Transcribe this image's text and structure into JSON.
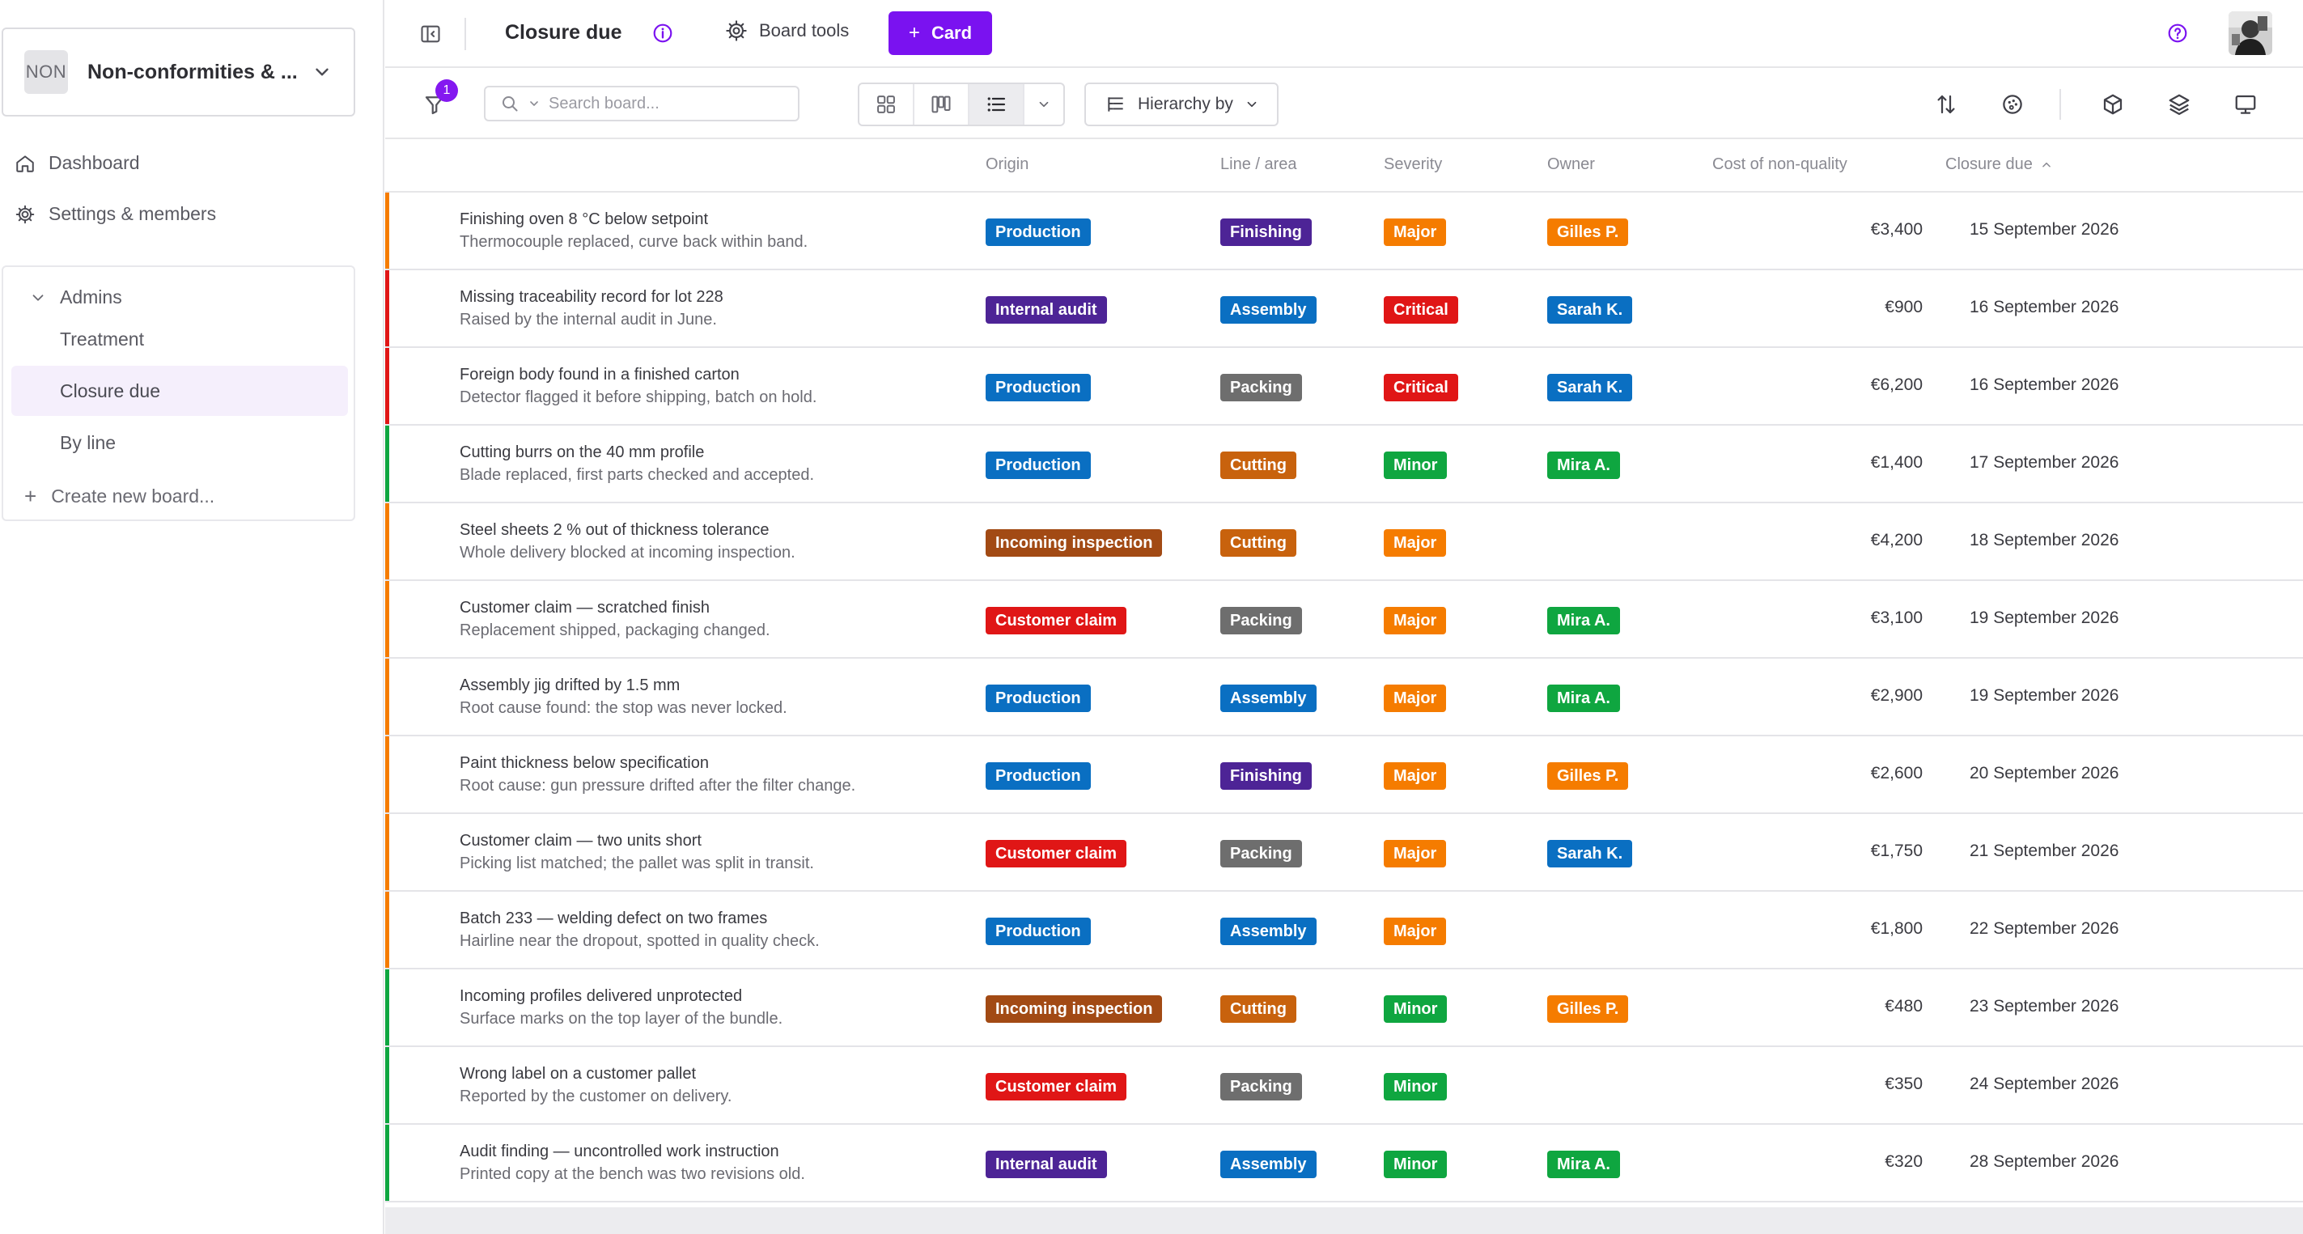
{
  "workspace": {
    "avatar_text": "NON",
    "name": "Non-conformities & ..."
  },
  "nav": {
    "dashboard": "Dashboard",
    "settings": "Settings & members"
  },
  "boards": {
    "group": "Admins",
    "items": [
      "Treatment",
      "Closure due",
      "By line"
    ],
    "active": "Closure due",
    "create": "Create new board..."
  },
  "topbar": {
    "title": "Closure due",
    "board_tools": "Board tools",
    "card_button": "Card"
  },
  "toolbar": {
    "filter_count": "1",
    "search_placeholder": "Search board...",
    "hierarchy": "Hierarchy by"
  },
  "columns": {
    "origin": "Origin",
    "line": "Line / area",
    "severity": "Severity",
    "owner": "Owner",
    "cost": "Cost of non-quality",
    "due": "Closure due"
  },
  "colors": {
    "accent": "#7a12f0",
    "origin": {
      "Production": "#0a6fc2",
      "Internal audit": "#4d2496",
      "Incoming inspection": "#a24a14",
      "Customer claim": "#e01616"
    },
    "line": {
      "Finishing": "#4d2496",
      "Assembly": "#0a6fc2",
      "Packing": "#6e6e6e",
      "Cutting": "#c8620d"
    },
    "severity": {
      "Major": "#f57c00",
      "Critical": "#e01616",
      "Minor": "#0fa640"
    },
    "owner": {
      "Gilles P.": "#f57c00",
      "Sarah K.": "#0a6fc2",
      "Mira A.": "#0fa640"
    }
  },
  "rows": [
    {
      "title": "Finishing oven 8 °C below setpoint",
      "sub": "Thermocouple replaced, curve back within band.",
      "origin": "Production",
      "line": "Finishing",
      "severity": "Major",
      "owner": "Gilles P.",
      "cost": "€3,400",
      "due": "15 September 2026"
    },
    {
      "title": "Missing traceability record for lot 228",
      "sub": "Raised by the internal audit in June.",
      "origin": "Internal audit",
      "line": "Assembly",
      "severity": "Critical",
      "owner": "Sarah K.",
      "cost": "€900",
      "due": "16 September 2026"
    },
    {
      "title": "Foreign body found in a finished carton",
      "sub": "Detector flagged it before shipping, batch on hold.",
      "origin": "Production",
      "line": "Packing",
      "severity": "Critical",
      "owner": "Sarah K.",
      "cost": "€6,200",
      "due": "16 September 2026"
    },
    {
      "title": "Cutting burrs on the 40 mm profile",
      "sub": "Blade replaced, first parts checked and accepted.",
      "origin": "Production",
      "line": "Cutting",
      "severity": "Minor",
      "owner": "Mira A.",
      "cost": "€1,400",
      "due": "17 September 2026"
    },
    {
      "title": "Steel sheets 2 % out of thickness tolerance",
      "sub": "Whole delivery blocked at incoming inspection.",
      "origin": "Incoming inspection",
      "line": "Cutting",
      "severity": "Major",
      "owner": "",
      "cost": "€4,200",
      "due": "18 September 2026"
    },
    {
      "title": "Customer claim — scratched finish",
      "sub": "Replacement shipped, packaging changed.",
      "origin": "Customer claim",
      "line": "Packing",
      "severity": "Major",
      "owner": "Mira A.",
      "cost": "€3,100",
      "due": "19 September 2026"
    },
    {
      "title": "Assembly jig drifted by 1.5 mm",
      "sub": "Root cause found: the stop was never locked.",
      "origin": "Production",
      "line": "Assembly",
      "severity": "Major",
      "owner": "Mira A.",
      "cost": "€2,900",
      "due": "19 September 2026"
    },
    {
      "title": "Paint thickness below specification",
      "sub": "Root cause: gun pressure drifted after the filter change.",
      "origin": "Production",
      "line": "Finishing",
      "severity": "Major",
      "owner": "Gilles P.",
      "cost": "€2,600",
      "due": "20 September 2026"
    },
    {
      "title": "Customer claim — two units short",
      "sub": "Picking list matched; the pallet was split in transit.",
      "origin": "Customer claim",
      "line": "Packing",
      "severity": "Major",
      "owner": "Sarah K.",
      "cost": "€1,750",
      "due": "21 September 2026"
    },
    {
      "title": "Batch 233 — welding defect on two frames",
      "sub": "Hairline near the dropout, spotted in quality check.",
      "origin": "Production",
      "line": "Assembly",
      "severity": "Major",
      "owner": "",
      "cost": "€1,800",
      "due": "22 September 2026"
    },
    {
      "title": "Incoming profiles delivered unprotected",
      "sub": "Surface marks on the top layer of the bundle.",
      "origin": "Incoming inspection",
      "line": "Cutting",
      "severity": "Minor",
      "owner": "Gilles P.",
      "cost": "€480",
      "due": "23 September 2026"
    },
    {
      "title": "Wrong label on a customer pallet",
      "sub": "Reported by the customer on delivery.",
      "origin": "Customer claim",
      "line": "Packing",
      "severity": "Minor",
      "owner": "",
      "cost": "€350",
      "due": "24 September 2026"
    },
    {
      "title": "Audit finding — uncontrolled work instruction",
      "sub": "Printed copy at the bench was two revisions old.",
      "origin": "Internal audit",
      "line": "Assembly",
      "severity": "Minor",
      "owner": "Mira A.",
      "cost": "€320",
      "due": "28 September 2026"
    }
  ]
}
